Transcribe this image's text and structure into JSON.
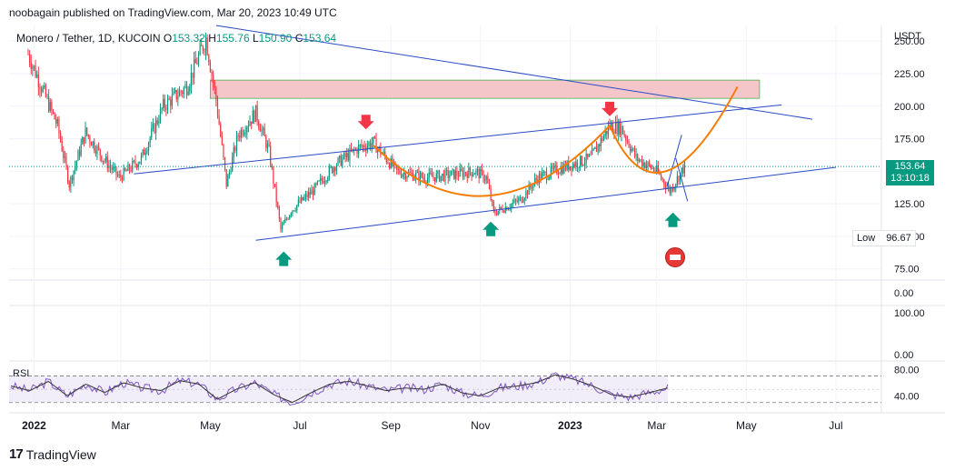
{
  "header": {
    "text": "noobagain published on TradingView.com, Mar 20, 2023 10:49 UTC"
  },
  "legend": {
    "symbol": "Monero / Tether, 1D, KUCOIN",
    "o_label": "O",
    "o": "153.32",
    "h_label": "H",
    "h": "155.76",
    "l_label": "L",
    "l": "150.90",
    "c_label": "C",
    "c": "153.64"
  },
  "price_tag": {
    "price": "153.64",
    "countdown": "13:10:18"
  },
  "low_tag": {
    "label": "Low",
    "value": "96.67"
  },
  "rsi_label": "RSI",
  "footer": {
    "brand": "TradingView",
    "logo_glyph": "17"
  },
  "colors": {
    "up": "#089981",
    "down": "#f23645",
    "trend": "#2a4bc6",
    "curve": "#f57c00",
    "rsi": "#7e57c2",
    "zone": "#f5c6c9"
  },
  "chart_data": [
    {
      "type": "candlestick",
      "title": "Monero / Tether, 1D, KUCOIN",
      "currency": "USDT",
      "ylim": [
        72,
        262
      ],
      "y_ticks": [
        "250.00",
        "225.00",
        "200.00",
        "175.00",
        "150.00",
        "125.00",
        "100.00",
        "75.00"
      ],
      "x_ticks": [
        "2022",
        "Mar",
        "May",
        "Jul",
        "Sep",
        "Nov",
        "2023",
        "Mar",
        "May",
        "Jul"
      ],
      "close_series": [
        {
          "date": "2021-12-28",
          "close": 240
        },
        {
          "date": "2022-01-06",
          "close": 215
        },
        {
          "date": "2022-01-17",
          "close": 185
        },
        {
          "date": "2022-01-25",
          "close": 140
        },
        {
          "date": "2022-02-05",
          "close": 180
        },
        {
          "date": "2022-02-17",
          "close": 160
        },
        {
          "date": "2022-02-28",
          "close": 145
        },
        {
          "date": "2022-03-15",
          "close": 160
        },
        {
          "date": "2022-03-30",
          "close": 200
        },
        {
          "date": "2022-04-15",
          "close": 215
        },
        {
          "date": "2022-04-28",
          "close": 252
        },
        {
          "date": "2022-05-05",
          "close": 205
        },
        {
          "date": "2022-05-12",
          "close": 140
        },
        {
          "date": "2022-05-20",
          "close": 178
        },
        {
          "date": "2022-06-01",
          "close": 195
        },
        {
          "date": "2022-06-10",
          "close": 165
        },
        {
          "date": "2022-06-18",
          "close": 105
        },
        {
          "date": "2022-06-25",
          "close": 120
        },
        {
          "date": "2022-07-10",
          "close": 135
        },
        {
          "date": "2022-07-25",
          "close": 155
        },
        {
          "date": "2022-08-10",
          "close": 168
        },
        {
          "date": "2022-08-20",
          "close": 172
        },
        {
          "date": "2022-09-05",
          "close": 150
        },
        {
          "date": "2022-09-25",
          "close": 145
        },
        {
          "date": "2022-10-10",
          "close": 147
        },
        {
          "date": "2022-10-28",
          "close": 150
        },
        {
          "date": "2022-11-05",
          "close": 145
        },
        {
          "date": "2022-11-10",
          "close": 118
        },
        {
          "date": "2022-11-28",
          "close": 128
        },
        {
          "date": "2022-12-10",
          "close": 145
        },
        {
          "date": "2022-12-25",
          "close": 152
        },
        {
          "date": "2023-01-15",
          "close": 160
        },
        {
          "date": "2023-01-28",
          "close": 185
        },
        {
          "date": "2023-02-05",
          "close": 183
        },
        {
          "date": "2023-02-15",
          "close": 160
        },
        {
          "date": "2023-03-01",
          "close": 150
        },
        {
          "date": "2023-03-10",
          "close": 135
        },
        {
          "date": "2023-03-20",
          "close": 153.64
        }
      ],
      "last_price": 153.64,
      "low": 96.67,
      "resistance_zone": [
        206,
        220
      ],
      "annotations": {
        "down_arrows": [
          {
            "date": "2022-08-15",
            "price": 185
          },
          {
            "date": "2023-01-28",
            "price": 195
          }
        ],
        "up_arrows": [
          {
            "date": "2022-06-20",
            "price": 82
          },
          {
            "date": "2022-11-08",
            "price": 105
          },
          {
            "date": "2023-03-12",
            "price": 112
          }
        ]
      }
    },
    {
      "type": "line",
      "title": "RSI",
      "y_ticks": [
        "80.00",
        "40.00"
      ],
      "band": [
        30,
        70
      ],
      "series": [
        {
          "values": [
            55,
            48,
            62,
            40,
            58,
            45,
            60,
            52,
            48,
            63,
            58,
            35,
            50,
            60,
            42,
            30,
            45,
            58,
            62,
            55,
            48,
            52,
            50,
            58,
            45,
            40,
            52,
            55,
            60,
            72,
            65,
            55,
            42,
            38,
            45,
            52
          ]
        }
      ]
    }
  ]
}
